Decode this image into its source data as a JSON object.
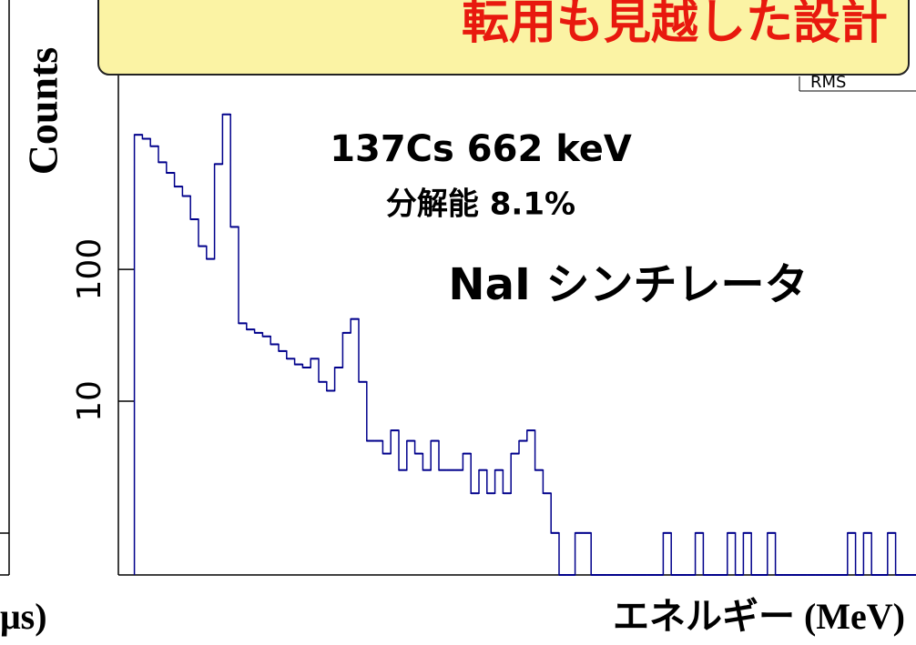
{
  "banner": "転用も見越した設計",
  "side_panel": {
    "xlabel": "μs)"
  },
  "stats_box": {
    "label": "RMS"
  },
  "chart_data": {
    "type": "histogram",
    "ylabel": "Counts",
    "xlabel": "エネルギー (MeV)",
    "annotations": [
      "137Cs 662 keV",
      "分解能 8.1%",
      "NaI シンチレータ"
    ],
    "color": "#00008b",
    "log_y": true,
    "xlim": [
      0,
      5
    ],
    "ylim": [
      0.48,
      5000
    ],
    "yticks": [
      10,
      100
    ],
    "bins": [
      0.1,
      0.15,
      0.2,
      0.25,
      0.3,
      0.35,
      0.4,
      0.45,
      0.5,
      0.55,
      0.6,
      0.65,
      0.7,
      0.75,
      0.8,
      0.85,
      0.9,
      0.95,
      1.0,
      1.05,
      1.1,
      1.15,
      1.2,
      1.25,
      1.3,
      1.35,
      1.4,
      1.45,
      1.5,
      1.55,
      1.6,
      1.65,
      1.7,
      1.75,
      1.8,
      1.85,
      1.9,
      1.95,
      2.0,
      2.05,
      2.1,
      2.15,
      2.2,
      2.25,
      2.3,
      2.35,
      2.4,
      2.45,
      2.5,
      2.55,
      2.6,
      2.65,
      2.7,
      2.75,
      2.8,
      2.85,
      2.9,
      2.95,
      3.0,
      3.05,
      3.1,
      3.15,
      3.2,
      3.25,
      3.3,
      3.35,
      3.4,
      3.45,
      3.5,
      3.55,
      3.6,
      3.65,
      3.7,
      3.75,
      3.8,
      3.85,
      3.9,
      3.95,
      4.0,
      4.05,
      4.1,
      4.15,
      4.2,
      4.25,
      4.3,
      4.35,
      4.4,
      4.45,
      4.5,
      4.55,
      4.6,
      4.65,
      4.7,
      4.75,
      4.8,
      4.85,
      4.9,
      4.95,
      5.0
    ],
    "values": [
      1050,
      980,
      860,
      650,
      540,
      425,
      360,
      240,
      150,
      120,
      630,
      1500,
      210,
      39,
      35,
      33,
      31,
      27,
      24,
      21,
      19,
      18,
      21,
      14,
      12,
      18,
      33,
      42,
      14,
      5,
      5,
      4,
      6,
      3,
      5,
      4,
      3,
      5,
      3,
      3,
      3,
      4,
      2,
      3,
      2,
      3,
      2,
      4,
      5,
      6,
      3,
      2,
      1,
      0,
      0,
      1,
      1,
      0,
      0,
      0,
      0,
      0,
      0,
      0,
      0,
      0,
      1,
      0,
      0,
      0,
      1,
      0,
      0,
      0,
      1,
      0,
      1,
      0,
      0,
      1,
      0,
      0,
      0,
      0,
      0,
      0,
      0,
      0,
      0,
      1,
      0,
      1,
      0,
      0,
      1,
      0,
      0,
      0
    ]
  }
}
